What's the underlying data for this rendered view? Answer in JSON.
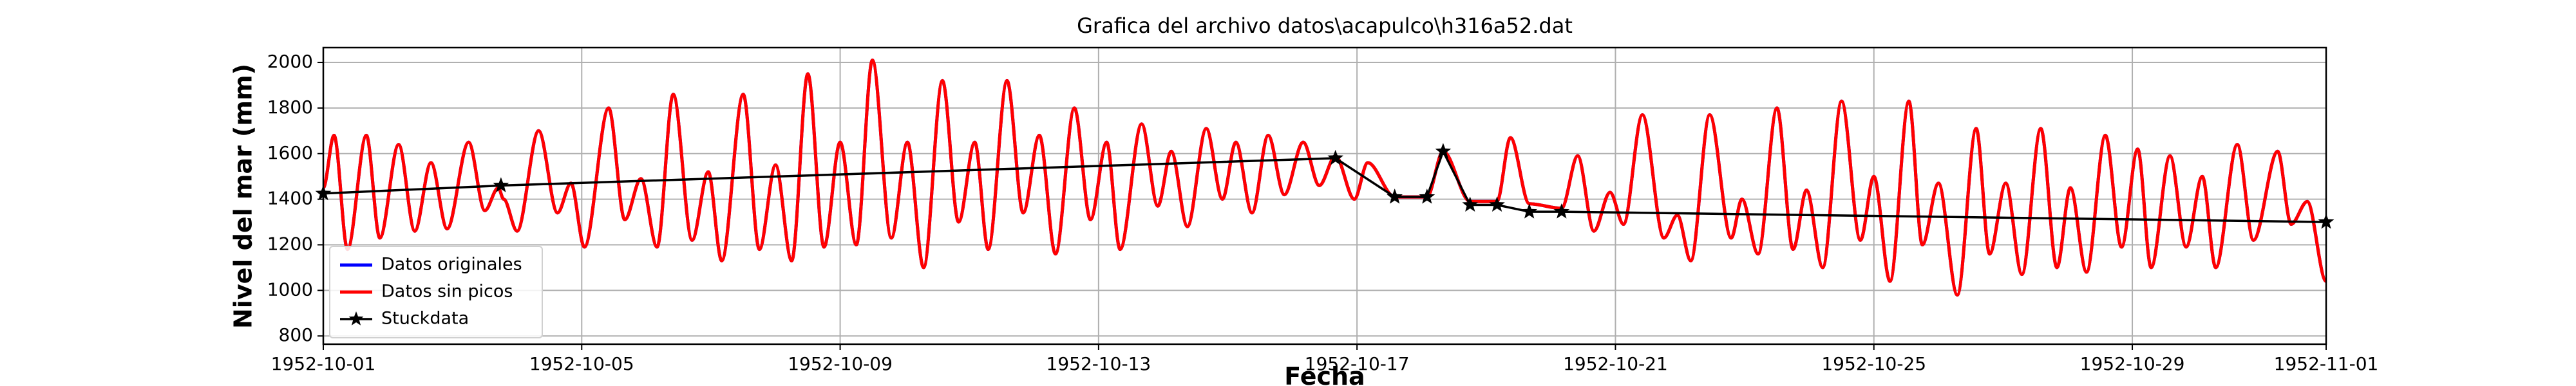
{
  "chart_data": {
    "type": "line",
    "title": "Grafica del archivo datos\\acapulco\\h316a52.dat",
    "xlabel": "Fecha",
    "ylabel": "Nivel del mar (mm)",
    "x": [
      "1952-10-01 00:00",
      "1952-10-01 04:00",
      "1952-10-01 09:00",
      "1952-10-01 16:00",
      "1952-10-01 21:00",
      "1952-10-02 04:00",
      "1952-10-02 10:00",
      "1952-10-02 16:00",
      "1952-10-02 22:00",
      "1952-10-03 06:00",
      "1952-10-03 12:00",
      "1952-10-03 17:00",
      "1952-10-03 19:00",
      "1952-10-04 00:00",
      "1952-10-04 08:00",
      "1952-10-04 15:00",
      "1952-10-04 20:00",
      "1952-10-05 01:00",
      "1952-10-05 10:00",
      "1952-10-05 16:00",
      "1952-10-05 22:00",
      "1952-10-06 04:00",
      "1952-10-06 10:00",
      "1952-10-06 17:00",
      "1952-10-06 23:00",
      "1952-10-07 04:00",
      "1952-10-07 12:00",
      "1952-10-07 18:00",
      "1952-10-08 00:00",
      "1952-10-08 06:00",
      "1952-10-08 12:00",
      "1952-10-08 18:00",
      "1952-10-09 00:00",
      "1952-10-09 06:00",
      "1952-10-09 12:00",
      "1952-10-09 19:00",
      "1952-10-10 01:00",
      "1952-10-10 07:00",
      "1952-10-10 14:00",
      "1952-10-10 20:00",
      "1952-10-11 02:00",
      "1952-10-11 07:00",
      "1952-10-11 14:00",
      "1952-10-11 20:00",
      "1952-10-12 02:00",
      "1952-10-12 08:00",
      "1952-10-12 15:00",
      "1952-10-12 21:00",
      "1952-10-13 03:00",
      "1952-10-13 08:00",
      "1952-10-13 16:00",
      "1952-10-13 22:00",
      "1952-10-14 03:00",
      "1952-10-14 09:00",
      "1952-10-14 16:00",
      "1952-10-14 22:00",
      "1952-10-15 03:00",
      "1952-10-15 09:00",
      "1952-10-15 15:00",
      "1952-10-15 21:00",
      "1952-10-16 04:00",
      "1952-10-16 10:00",
      "1952-10-16 16:00",
      "1952-10-16 23:00",
      "1952-10-17 04:00",
      "1952-10-17 14:00",
      "1952-10-18 02:00",
      "1952-10-18 08:00",
      "1952-10-18 18:00",
      "1952-10-19 04:00",
      "1952-10-19 09:00",
      "1952-10-19 16:00",
      "1952-10-20 04:00",
      "1952-10-20 10:00",
      "1952-10-20 16:00",
      "1952-10-20 22:00",
      "1952-10-21 03:00",
      "1952-10-21 10:00",
      "1952-10-21 18:00",
      "1952-10-21 23:00",
      "1952-10-22 04:00",
      "1952-10-22 11:00",
      "1952-10-22 19:00",
      "1952-10-22 23:00",
      "1952-10-23 05:00",
      "1952-10-23 12:00",
      "1952-10-23 18:00",
      "1952-10-23 23:00",
      "1952-10-24 05:00",
      "1952-10-24 12:00",
      "1952-10-24 19:00",
      "1952-10-25 00:00",
      "1952-10-25 06:00",
      "1952-10-25 13:00",
      "1952-10-25 18:00",
      "1952-10-26 00:00",
      "1952-10-26 07:00",
      "1952-10-26 14:00",
      "1952-10-26 19:00",
      "1952-10-27 01:00",
      "1952-10-27 07:00",
      "1952-10-27 14:00",
      "1952-10-27 20:00",
      "1952-10-28 01:00",
      "1952-10-28 07:00",
      "1952-10-28 14:00",
      "1952-10-28 20:00",
      "1952-10-29 02:00",
      "1952-10-29 07:00",
      "1952-10-29 14:00",
      "1952-10-29 20:00",
      "1952-10-30 02:00",
      "1952-10-30 07:00",
      "1952-10-30 15:00",
      "1952-10-30 21:00",
      "1952-10-31 06:00",
      "1952-10-31 11:00",
      "1952-10-31 17:00",
      "1952-11-01 00:00"
    ],
    "series": [
      {
        "name": "Datos originales",
        "color": "#0000ff",
        "values": [
          1450,
          1680,
          1180,
          1680,
          1230,
          1640,
          1260,
          1560,
          1270,
          1650,
          1350,
          1450,
          1400,
          1260,
          1700,
          1340,
          1470,
          1190,
          1800,
          1310,
          1490,
          1190,
          1860,
          1220,
          1520,
          1130,
          1860,
          1180,
          1550,
          1130,
          1950,
          1190,
          1650,
          1200,
          2010,
          1230,
          1650,
          1100,
          1920,
          1300,
          1650,
          1180,
          1920,
          1340,
          1680,
          1160,
          1800,
          1310,
          1650,
          1180,
          1730,
          1370,
          1610,
          1280,
          1710,
          1400,
          1650,
          1340,
          1680,
          1420,
          1650,
          1460,
          1590,
          1400,
          1560,
          1410,
          1410,
          1610,
          1390,
          1390,
          1670,
          1380,
          1360,
          1590,
          1260,
          1430,
          1290,
          1770,
          1230,
          1330,
          1130,
          1770,
          1230,
          1400,
          1160,
          1800,
          1180,
          1440,
          1100,
          1830,
          1220,
          1500,
          1040,
          1830,
          1200,
          1470,
          980,
          1710,
          1160,
          1470,
          1070,
          1710,
          1100,
          1450,
          1080,
          1680,
          1190,
          1620,
          1100,
          1590,
          1190,
          1500,
          1100,
          1640,
          1220,
          1610,
          1290,
          1390,
          1040
        ]
      },
      {
        "name": "Datos sin picos",
        "color": "#ff0000",
        "values": [
          1450,
          1680,
          1180,
          1680,
          1230,
          1640,
          1260,
          1560,
          1270,
          1650,
          1350,
          1450,
          1400,
          1260,
          1700,
          1340,
          1470,
          1190,
          1800,
          1310,
          1490,
          1190,
          1860,
          1220,
          1520,
          1130,
          1860,
          1180,
          1550,
          1130,
          1950,
          1190,
          1650,
          1200,
          2010,
          1230,
          1650,
          1100,
          1920,
          1300,
          1650,
          1180,
          1920,
          1340,
          1680,
          1160,
          1800,
          1310,
          1650,
          1180,
          1730,
          1370,
          1610,
          1280,
          1710,
          1400,
          1650,
          1340,
          1680,
          1420,
          1650,
          1460,
          1590,
          1400,
          1560,
          1410,
          1410,
          1610,
          1390,
          1390,
          1670,
          1380,
          1360,
          1590,
          1260,
          1430,
          1290,
          1770,
          1230,
          1330,
          1130,
          1770,
          1230,
          1400,
          1160,
          1800,
          1180,
          1440,
          1100,
          1830,
          1220,
          1500,
          1040,
          1830,
          1200,
          1470,
          980,
          1710,
          1160,
          1470,
          1070,
          1710,
          1100,
          1450,
          1080,
          1680,
          1190,
          1620,
          1100,
          1590,
          1190,
          1500,
          1100,
          1640,
          1220,
          1610,
          1290,
          1390,
          1040
        ]
      },
      {
        "name": "Stuckdata",
        "color": "#000000",
        "marker": "star",
        "x": [
          "1952-10-01 00:00",
          "1952-10-03 18:00",
          "1952-10-16 16:00",
          "1952-10-17 14:00",
          "1952-10-18 02:00",
          "1952-10-18 08:00",
          "1952-10-18 18:00",
          "1952-10-19 04:00",
          "1952-10-19 16:00",
          "1952-10-20 04:00",
          "1952-11-01 00:00"
        ],
        "values": [
          1425,
          1460,
          1580,
          1410,
          1410,
          1610,
          1375,
          1375,
          1345,
          1345,
          1300
        ]
      }
    ],
    "xlim": [
      "1952-10-01 00:00",
      "1952-11-01 00:00"
    ],
    "xticks": [
      "1952-10-01",
      "1952-10-05",
      "1952-10-09",
      "1952-10-13",
      "1952-10-17",
      "1952-10-21",
      "1952-10-25",
      "1952-10-29",
      "1952-11-01"
    ],
    "ylim": [
      764,
      2065
    ],
    "yticks": [
      800,
      1000,
      1200,
      1400,
      1600,
      1800,
      2000
    ],
    "grid": true,
    "legend": "lower left"
  }
}
